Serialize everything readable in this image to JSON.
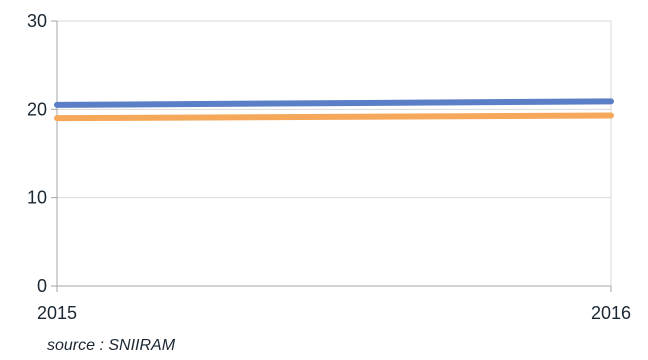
{
  "chart_data": {
    "type": "line",
    "x": [
      "2015",
      "2016"
    ],
    "series": [
      {
        "values": [
          20.5,
          20.9
        ],
        "color": "#5b7fc7"
      },
      {
        "values": [
          19.0,
          19.3
        ],
        "color": "#f5a85a"
      }
    ],
    "ylim": [
      0,
      30
    ],
    "yticks": [
      "0",
      "10",
      "20",
      "30"
    ],
    "xticks": [
      "2015",
      "2016"
    ],
    "grid": "horizontal",
    "grid_color": "#d9d9d9",
    "axis_color": "#a6a6a6"
  },
  "source": "source : SNIIRAM"
}
